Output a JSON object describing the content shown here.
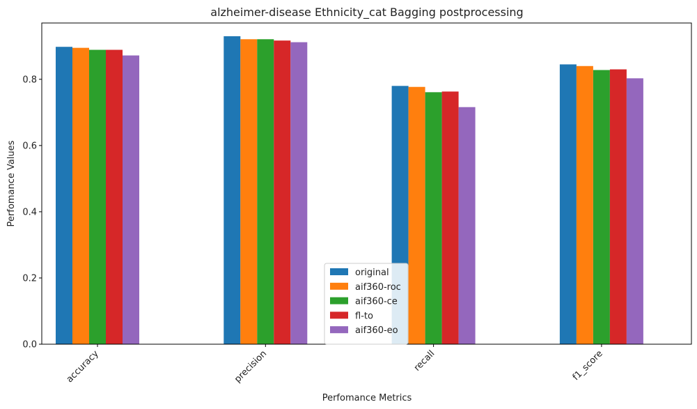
{
  "chart_data": {
    "type": "bar",
    "title": "alzheimer-disease Ethnicity_cat Bagging postprocessing",
    "xlabel": "Perfomance Metrics",
    "ylabel": "Perfomance Values",
    "categories": [
      "accuracy",
      "precision",
      "recall",
      "f1_score"
    ],
    "ylim": [
      0,
      0.97
    ],
    "yticks": [
      0.0,
      0.2,
      0.4,
      0.6,
      0.8
    ],
    "ytick_labels": [
      "0.0",
      "0.2",
      "0.4",
      "0.6",
      "0.8"
    ],
    "grid": false,
    "legend_position": "lower-center",
    "series": [
      {
        "name": "original",
        "color": "#1f77b4",
        "values": [
          0.898,
          0.93,
          0.78,
          0.845
        ]
      },
      {
        "name": "aif360-roc",
        "color": "#ff7f0e",
        "values": [
          0.895,
          0.921,
          0.777,
          0.84
        ]
      },
      {
        "name": "aif360-ce",
        "color": "#2ca02c",
        "values": [
          0.889,
          0.921,
          0.761,
          0.828
        ]
      },
      {
        "name": "fl-to",
        "color": "#d62728",
        "values": [
          0.889,
          0.917,
          0.763,
          0.83
        ]
      },
      {
        "name": "aif360-eo",
        "color": "#9467bd",
        "values": [
          0.872,
          0.912,
          0.716,
          0.803
        ]
      }
    ]
  }
}
